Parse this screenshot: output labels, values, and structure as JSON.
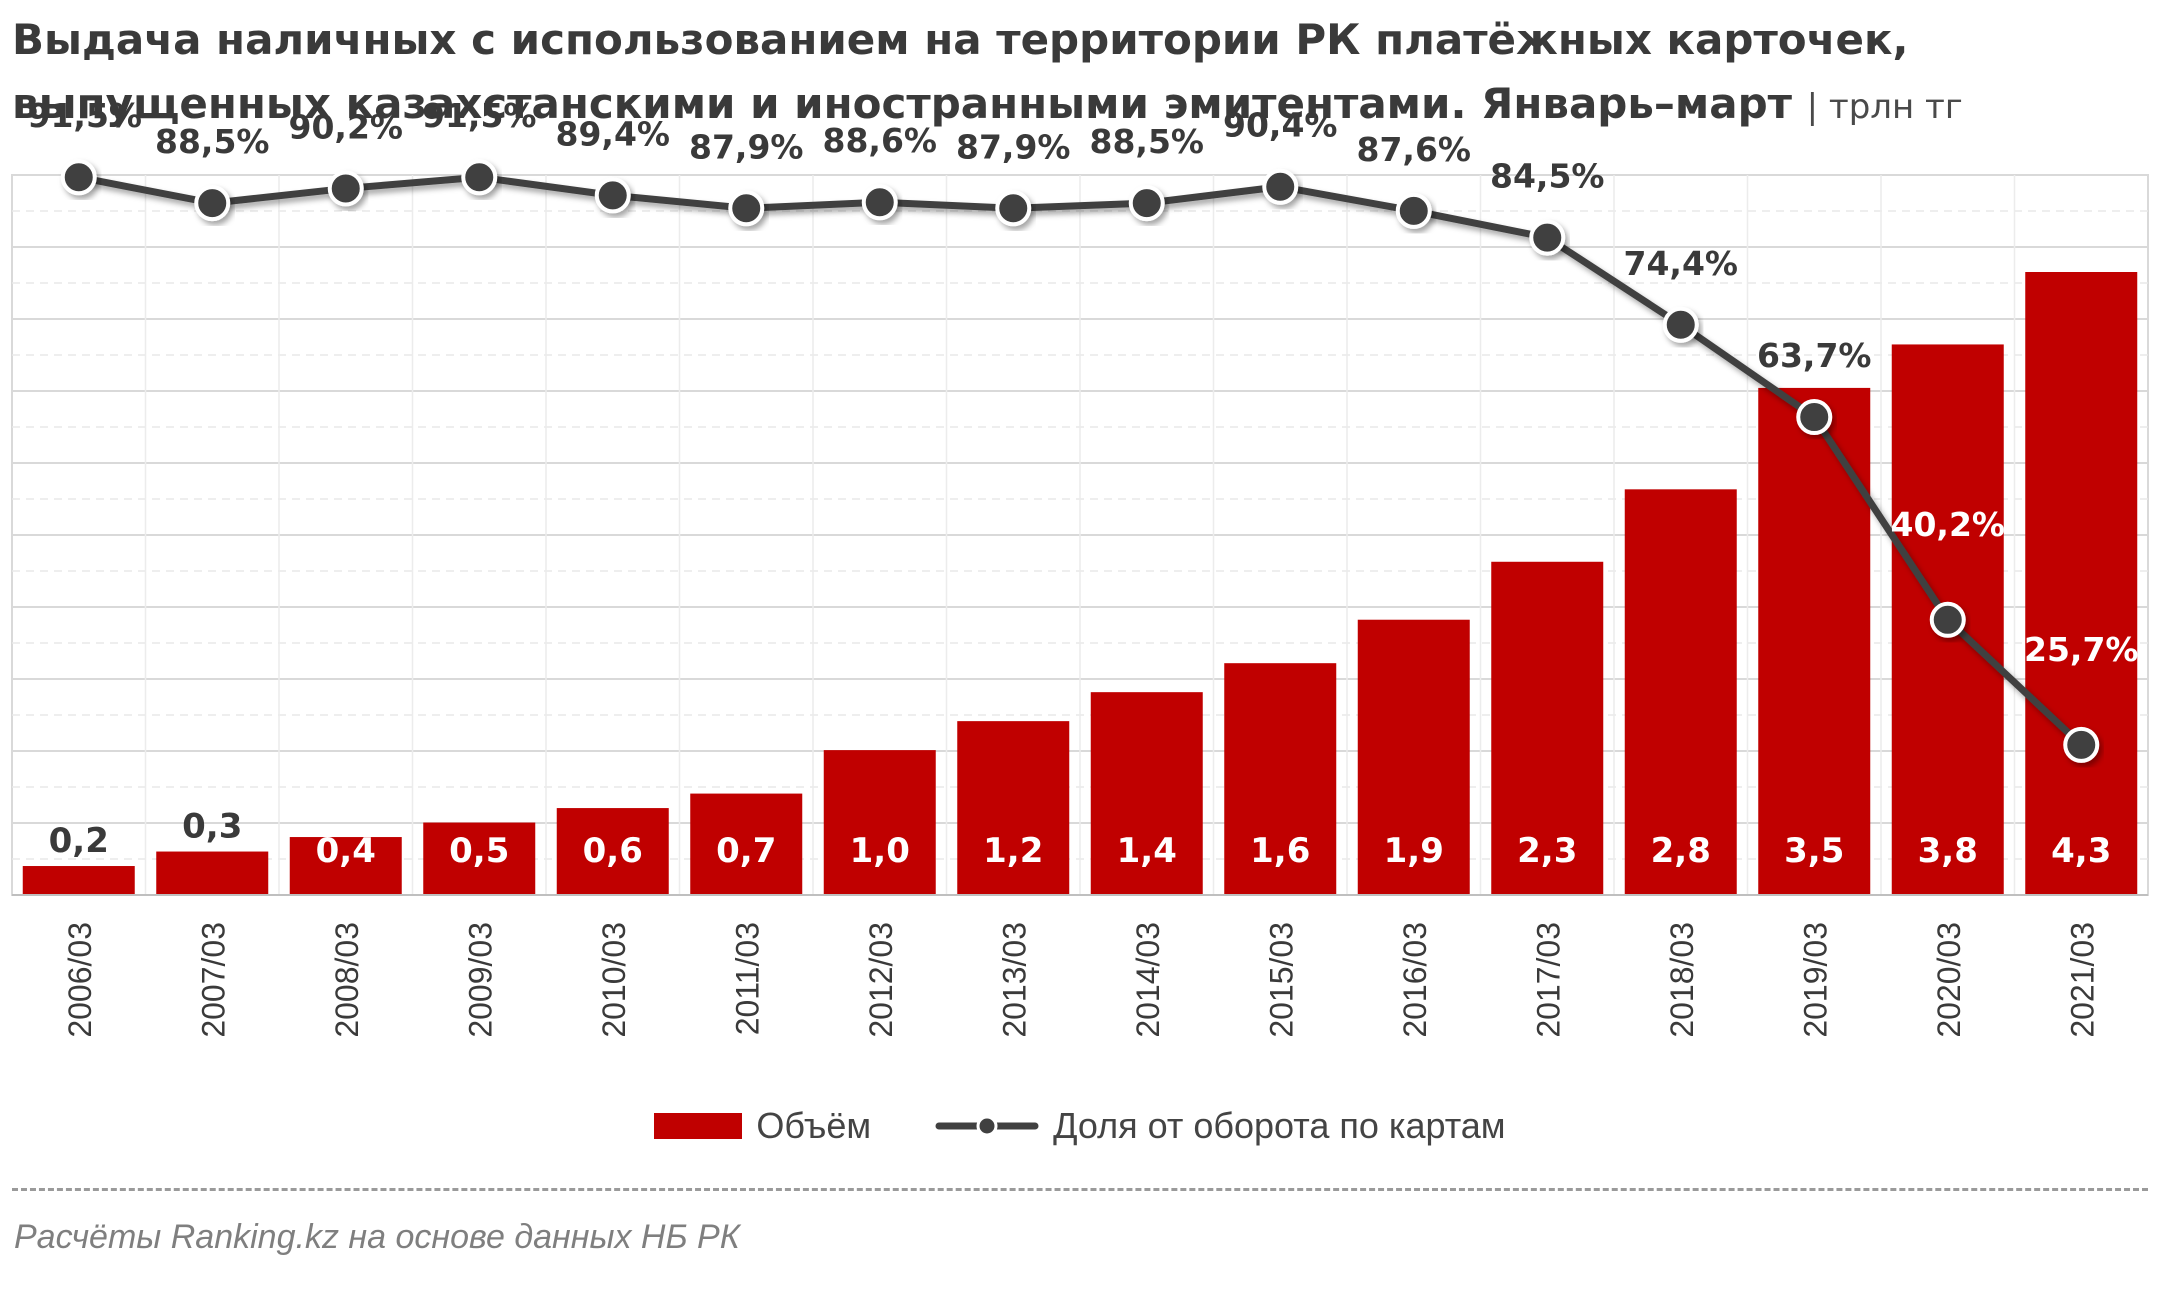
{
  "title": {
    "line1": "Выдача наличных с использованием на территории РК платёжных карточек,",
    "line2": "выпущенных казахстанскими и иностранными эмитентами. Январь–март",
    "unit": "| трлн тг"
  },
  "colors": {
    "bar": "#c00000",
    "line": "#404040",
    "marker": "#404040"
  },
  "legend": {
    "bar_label": "Объём",
    "line_label": "Доля от оборота по картам"
  },
  "source": "Расчёты Ranking.kz на основе данных НБ РК",
  "chart_data": {
    "type": "bar",
    "categories": [
      "2006/03",
      "2007/03",
      "2008/03",
      "2009/03",
      "2010/03",
      "2011/03",
      "2012/03",
      "2013/03",
      "2014/03",
      "2015/03",
      "2016/03",
      "2017/03",
      "2018/03",
      "2019/03",
      "2020/03",
      "2021/03"
    ],
    "series": [
      {
        "name": "Объём",
        "type": "bar",
        "values": [
          0.2,
          0.3,
          0.4,
          0.5,
          0.6,
          0.7,
          1.0,
          1.2,
          1.4,
          1.6,
          1.9,
          2.3,
          2.8,
          3.5,
          3.8,
          4.3
        ],
        "labels": [
          "0,2",
          "0,3",
          "0,4",
          "0,5",
          "0,6",
          "0,7",
          "1,0",
          "1,2",
          "1,4",
          "1,6",
          "1,9",
          "2,3",
          "2,8",
          "3,5",
          "3,8",
          "4,3"
        ]
      },
      {
        "name": "Доля от оборота по картам",
        "type": "line",
        "values": [
          91.5,
          88.5,
          90.2,
          91.5,
          89.4,
          87.9,
          88.6,
          87.9,
          88.5,
          90.4,
          87.6,
          84.5,
          74.4,
          63.7,
          40.2,
          25.7
        ],
        "labels": [
          "91,5%",
          "88,5%",
          "90,2%",
          "91,5%",
          "89,4%",
          "87,9%",
          "88,6%",
          "87,9%",
          "88,5%",
          "90,4%",
          "87,6%",
          "84,5%",
          "74,4%",
          "63,7%",
          "40,2%",
          "25,7%"
        ]
      }
    ],
    "grid": true,
    "legend_position": "bottom"
  }
}
